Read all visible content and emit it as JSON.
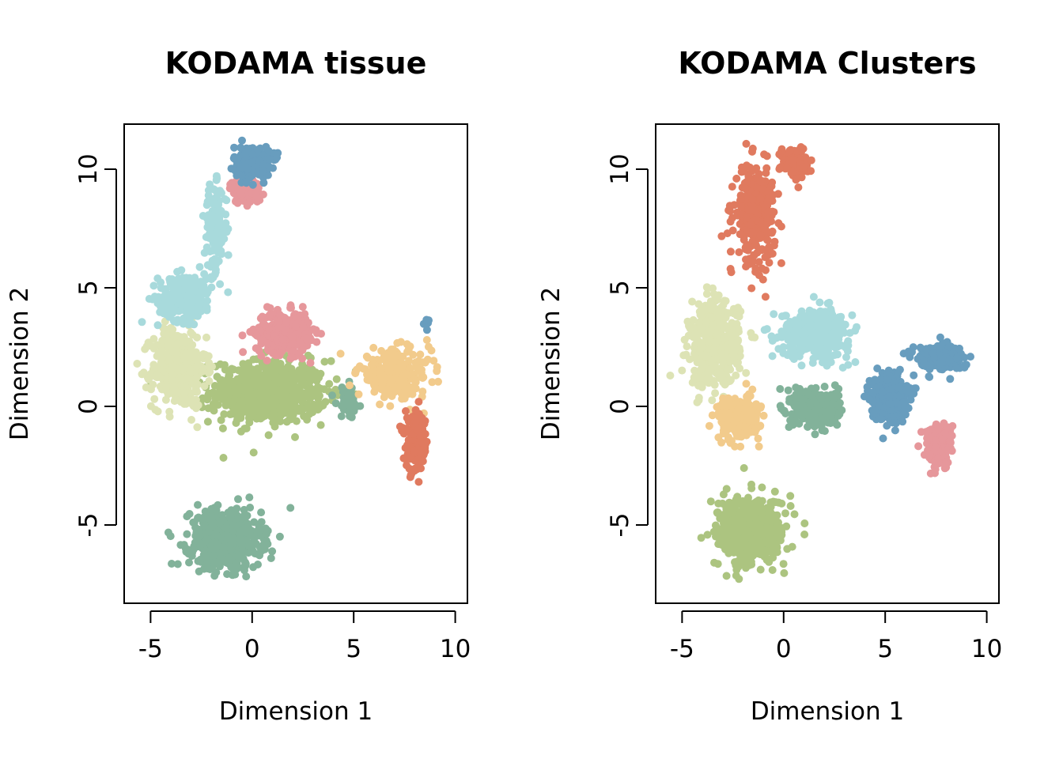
{
  "chart_data": [
    {
      "type": "scatter",
      "title": "KODAMA tissue",
      "xlabel": "Dimension 1",
      "ylabel": "Dimension 2",
      "xlim": [
        -6.3,
        10.6
      ],
      "ylim": [
        -8.3,
        11.9
      ],
      "xticks": [
        -5,
        0,
        5,
        10
      ],
      "yticks": [
        -5,
        0,
        5,
        10
      ],
      "grid": false,
      "legend": "none",
      "regions": [
        {
          "color": "#ACC480",
          "center": [
            0.8,
            0.6
          ],
          "spread": [
            2.6,
            1.2
          ],
          "n": 650
        },
        {
          "color": "#DDE3B5",
          "center": [
            -3.6,
            1.6
          ],
          "spread": [
            1.2,
            1.5
          ],
          "n": 420
        },
        {
          "color": "#A8DADC",
          "center": [
            -3.3,
            4.6
          ],
          "spread": [
            1.2,
            0.9
          ],
          "n": 220
        },
        {
          "color": "#A8DADC",
          "center": [
            -1.8,
            7.5
          ],
          "spread": [
            0.5,
            1.6
          ],
          "n": 150
        },
        {
          "color": "#E6979B",
          "center": [
            1.5,
            3.1
          ],
          "spread": [
            1.2,
            0.8
          ],
          "n": 320
        },
        {
          "color": "#E6979B",
          "center": [
            -0.3,
            9.1
          ],
          "spread": [
            0.7,
            0.5
          ],
          "n": 80
        },
        {
          "color": "#689DBE",
          "center": [
            0.0,
            10.3
          ],
          "spread": [
            0.8,
            0.6
          ],
          "n": 260
        },
        {
          "color": "#82B29A",
          "center": [
            -1.3,
            -5.6
          ],
          "spread": [
            1.6,
            1.1
          ],
          "n": 520
        },
        {
          "color": "#82B29A",
          "center": [
            4.7,
            0.2
          ],
          "spread": [
            0.5,
            0.6
          ],
          "n": 60
        },
        {
          "color": "#F2CB8C",
          "center": [
            7.0,
            1.4
          ],
          "spread": [
            1.6,
            0.9
          ],
          "n": 260
        },
        {
          "color": "#E07A5F",
          "center": [
            8.1,
            -1.6
          ],
          "spread": [
            0.5,
            1.1
          ],
          "n": 170
        },
        {
          "color": "#689DBE",
          "center": [
            8.6,
            3.6
          ],
          "spread": [
            0.1,
            0.2
          ],
          "n": 6
        }
      ]
    },
    {
      "type": "scatter",
      "title": "KODAMA Clusters",
      "xlabel": "Dimension 1",
      "ylabel": "Dimension 2",
      "xlim": [
        -6.3,
        10.6
      ],
      "ylim": [
        -8.3,
        11.9
      ],
      "xticks": [
        -5,
        0,
        5,
        10
      ],
      "yticks": [
        -5,
        0,
        5,
        10
      ],
      "grid": false,
      "legend": "none",
      "regions": [
        {
          "color": "#E07A5F",
          "center": [
            -1.4,
            8.1
          ],
          "spread": [
            0.9,
            1.8
          ],
          "n": 300
        },
        {
          "color": "#E07A5F",
          "center": [
            0.5,
            10.3
          ],
          "spread": [
            0.6,
            0.6
          ],
          "n": 120
        },
        {
          "color": "#DDE3B5",
          "center": [
            -3.4,
            2.6
          ],
          "spread": [
            1.1,
            1.6
          ],
          "n": 480
        },
        {
          "color": "#A8DADC",
          "center": [
            1.6,
            3.1
          ],
          "spread": [
            1.5,
            0.9
          ],
          "n": 420
        },
        {
          "color": "#F2CB8C",
          "center": [
            -2.2,
            -0.5
          ],
          "spread": [
            0.9,
            0.8
          ],
          "n": 260
        },
        {
          "color": "#82B29A",
          "center": [
            1.6,
            -0.1
          ],
          "spread": [
            1.0,
            0.7
          ],
          "n": 330
        },
        {
          "color": "#689DBE",
          "center": [
            5.2,
            0.4
          ],
          "spread": [
            0.8,
            0.9
          ],
          "n": 300
        },
        {
          "color": "#689DBE",
          "center": [
            7.6,
            2.1
          ],
          "spread": [
            1.1,
            0.5
          ],
          "n": 200
        },
        {
          "color": "#E6979B",
          "center": [
            7.6,
            -1.6
          ],
          "spread": [
            0.6,
            0.8
          ],
          "n": 180
        },
        {
          "color": "#ACC480",
          "center": [
            -1.6,
            -5.3
          ],
          "spread": [
            1.5,
            1.3
          ],
          "n": 560
        }
      ]
    }
  ]
}
